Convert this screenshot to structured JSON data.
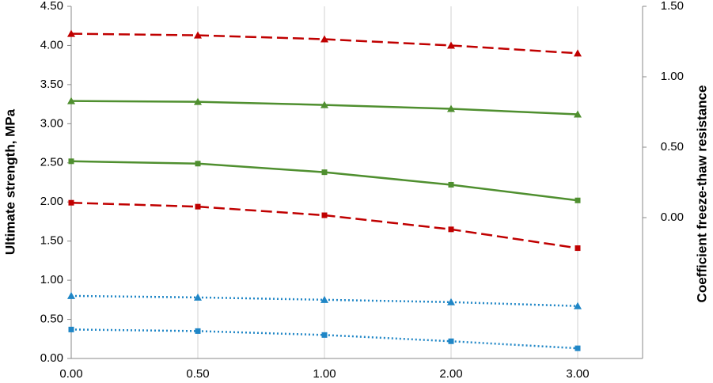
{
  "chart_data": {
    "type": "line",
    "y_label": "Ultimate strength, MPa",
    "y2_label": "Coefficient freeze-thaw resistance",
    "categories": [
      "0.00",
      "0.50",
      "1.00",
      "2.00",
      "3.00"
    ],
    "ylim": [
      0,
      4.5
    ],
    "yticks": [
      {
        "value": 0,
        "label": "0.00"
      },
      {
        "value": 0.5,
        "label": "0.50"
      },
      {
        "value": 1,
        "label": "1.00"
      },
      {
        "value": 1.5,
        "label": "1.50"
      },
      {
        "value": 2,
        "label": "2.00"
      },
      {
        "value": 2.5,
        "label": "2.50"
      },
      {
        "value": 3,
        "label": "3.00"
      },
      {
        "value": 3.5,
        "label": "3.50"
      },
      {
        "value": 4,
        "label": "4.00"
      },
      {
        "value": 4.5,
        "label": "4.50"
      }
    ],
    "y2lim": [
      -1,
      1.5
    ],
    "y2ticks": [
      {
        "value": 0,
        "label": "0.00"
      },
      {
        "value": 0.5,
        "label": "0.50"
      },
      {
        "value": 1,
        "label": "1.00"
      },
      {
        "value": 1.5,
        "label": "1.50"
      }
    ],
    "grid": true,
    "series": [
      {
        "color": "#c00000",
        "dash": "dashed",
        "marker": "triangle",
        "values": [
          4.15,
          4.13,
          4.08,
          4.0,
          3.9
        ]
      },
      {
        "color": "#4f8f2f",
        "dash": "solid",
        "marker": "triangle",
        "values": [
          3.29,
          3.28,
          3.24,
          3.19,
          3.12
        ]
      },
      {
        "color": "#4f8f2f",
        "dash": "solid",
        "marker": "square",
        "values": [
          2.52,
          2.49,
          2.38,
          2.22,
          2.02
        ]
      },
      {
        "color": "#c00000",
        "dash": "dashed",
        "marker": "square",
        "values": [
          1.99,
          1.94,
          1.83,
          1.65,
          1.41
        ]
      },
      {
        "color": "#1f86c6",
        "dash": "dotted",
        "marker": "triangle",
        "values": [
          0.8,
          0.78,
          0.75,
          0.72,
          0.67
        ]
      },
      {
        "color": "#1f86c6",
        "dash": "dotted",
        "marker": "square",
        "values": [
          0.37,
          0.35,
          0.3,
          0.22,
          0.13
        ]
      }
    ]
  }
}
